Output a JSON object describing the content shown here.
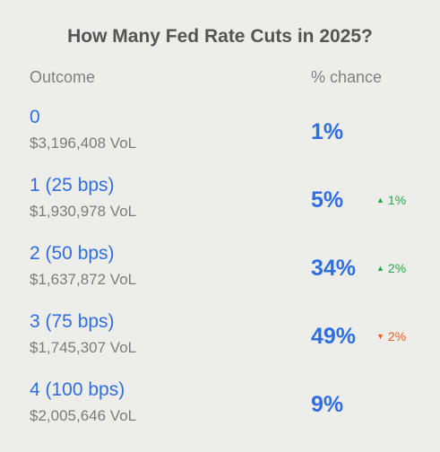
{
  "title": "How Many Fed Rate Cuts in 2025?",
  "headers": {
    "outcome": "Outcome",
    "chance": "% chance"
  },
  "rows": [
    {
      "name": "0",
      "volume": "$3,196,408 VoL",
      "chance": "1%",
      "change": null
    },
    {
      "name": "1 (25 bps)",
      "volume": "$1,930,978 VoL",
      "chance": "5%",
      "change": {
        "direction": "up",
        "value": "1%"
      }
    },
    {
      "name": "2 (50 bps)",
      "volume": "$1,637,872 VoL",
      "chance": "34%",
      "change": {
        "direction": "up",
        "value": "2%"
      }
    },
    {
      "name": "3 (75 bps)",
      "volume": "$1,745,307 VoL",
      "chance": "49%",
      "change": {
        "direction": "down",
        "value": "2%"
      }
    },
    {
      "name": "4 (100 bps)",
      "volume": "$2,005,646 VoL",
      "chance": "9%",
      "change": null
    }
  ],
  "colors": {
    "accent": "#2f6ee3",
    "up": "#22a846",
    "down": "#ef5a22",
    "background": "#ededea"
  },
  "icons": {
    "up": "caret-up-icon",
    "down": "caret-down-icon"
  }
}
